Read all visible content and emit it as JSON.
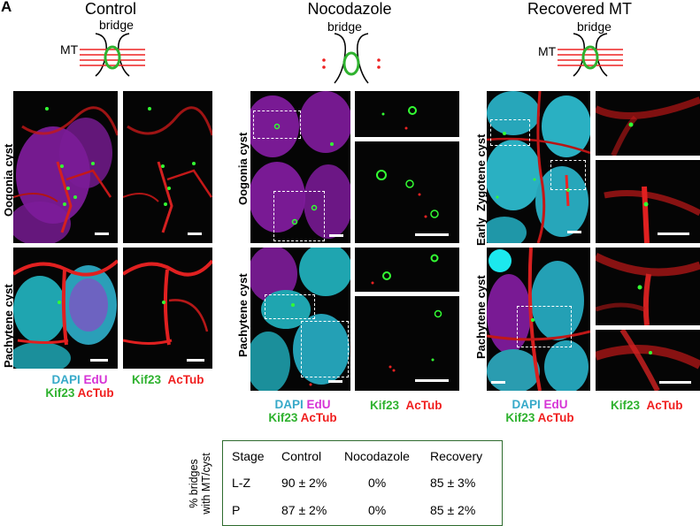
{
  "panel_letters": "A",
  "titles": {
    "control": "Control",
    "nocodazole": "Nocodazole",
    "recovered": "Recovered MT"
  },
  "diagram": {
    "bridge": "bridge",
    "mt": "MT"
  },
  "row_labels": {
    "oogonia": "Oogonia cyst",
    "pachytene": "Pachytene cyst",
    "early_zygotene_1": "Early",
    "early_zygotene_2": "Zygotene cyst"
  },
  "legend": {
    "dapi": "DAPI",
    "edu": "EdU",
    "kif23": "Kif23",
    "actub": "AcTub"
  },
  "table": {
    "ylabel_1": "% bridges",
    "ylabel_2": "with MT/cyst",
    "headers": [
      "Stage",
      "Control",
      "Nocodazole",
      "Recovery"
    ],
    "rows": [
      [
        "L-Z",
        "90 ± 2%",
        "0%",
        "85 ± 3%"
      ],
      [
        "P",
        "87 ± 2%",
        "0%",
        "85 ± 2%"
      ]
    ]
  },
  "colors": {
    "dapi": "#36a9c9",
    "edu": "#d633d6",
    "kif23": "#2fb22f",
    "actub": "#f01f1f",
    "table_border": "#2e6b2e"
  }
}
